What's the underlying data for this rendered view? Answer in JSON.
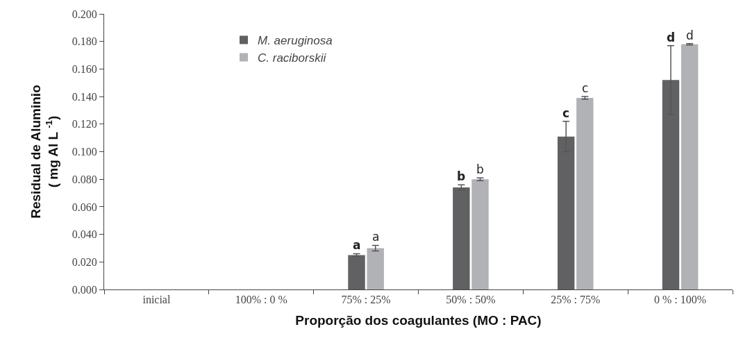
{
  "chart_data": {
    "type": "bar",
    "xlabel": "Proporção dos coagulantes (MO : PAC)",
    "ylabel": "Residual de Aluminio\n( mg Al L $^{-1}$)",
    "categories": [
      "inicial",
      "100% : 0 %",
      "75% : 25%",
      "50% : 50%",
      "25% : 75%",
      "0 % : 100%"
    ],
    "series": [
      {
        "name": "M. aeruginosa",
        "color": "#616163",
        "values": [
          null,
          null,
          0.025,
          0.074,
          0.111,
          0.152
        ],
        "errors": [
          null,
          null,
          0.001,
          0.002,
          0.011,
          0.025
        ],
        "value_labels": [
          null,
          null,
          "a",
          "b",
          "c",
          "d"
        ]
      },
      {
        "name": "C. raciborskii",
        "color": "#b1b2b6",
        "values": [
          null,
          null,
          0.03,
          0.08,
          0.139,
          0.178
        ],
        "errors": [
          null,
          null,
          0.002,
          0.001,
          0.001,
          0.0005
        ],
        "value_labels": [
          null,
          null,
          "a",
          "b",
          "c",
          "d"
        ]
      }
    ],
    "ylim": [
      0,
      0.2
    ],
    "yticks": [
      {
        "value": 0,
        "label": "0.000"
      },
      {
        "value": 0.02,
        "label": "0.020"
      },
      {
        "value": 0.04,
        "label": "0.040"
      },
      {
        "value": 0.06,
        "label": "0.060"
      },
      {
        "value": 0.08,
        "label": "0.080"
      },
      {
        "value": 0.1,
        "label": "0.100"
      },
      {
        "value": 0.12,
        "label": "0.120"
      },
      {
        "value": 0.14,
        "label": "0.140"
      },
      {
        "value": 0.16,
        "label": "0.160"
      },
      {
        "value": 0.18,
        "label": "0.180"
      },
      {
        "value": 0.2,
        "label": "0.200"
      }
    ],
    "legend": "top left"
  }
}
